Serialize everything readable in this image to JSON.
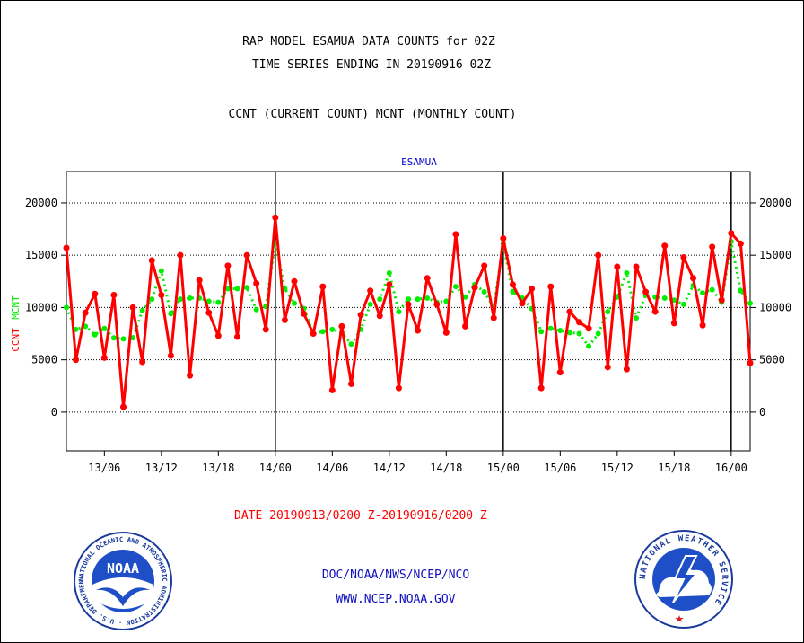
{
  "header": {
    "line1": "RAP MODEL ESAMUA DATA COUNTS for 02Z",
    "line2": "TIME SERIES ENDING IN 20190916 02Z",
    "line3": "CCNT (CURRENT COUNT) MCNT (MONTHLY COUNT)"
  },
  "footer": {
    "date_range": "DATE 20190913/0200 Z-20190916/0200 Z",
    "org": "DOC/NOAA/NWS/NCEP/NCO",
    "url": "WWW.NCEP.NOAA.GOV"
  },
  "logos": {
    "left": "noaa-logo",
    "left_text": "NOAA",
    "left_ring_text": "NATIONAL OCEANIC AND ATMOSPHERIC ADMINISTRATION · U.S. DEPARTMENT OF COMMERCE",
    "right": "nws-logo",
    "right_ring_text": "NATIONAL WEATHER SERVICE"
  },
  "colors": {
    "ccnt": "#ff0000",
    "mcnt": "#00ee00",
    "title": "#0000cc",
    "axis": "#000000"
  },
  "chart_data": {
    "type": "line",
    "title": "ESAMUA",
    "ylabel_left_series1": "CCNT",
    "ylabel_left_series2": "MCNT",
    "ylim": [
      -3700,
      23000
    ],
    "yticks": [
      0,
      5000,
      10000,
      15000,
      20000
    ],
    "grid": true,
    "x_tick_labels": [
      "13/06",
      "13/12",
      "13/18",
      "14/00",
      "14/06",
      "14/12",
      "14/18",
      "15/00",
      "15/06",
      "15/12",
      "15/18",
      "16/00"
    ],
    "x_tick_hours": [
      4,
      10,
      16,
      22,
      28,
      34,
      40,
      46,
      52,
      58,
      64,
      70
    ],
    "day_boundary_hours": [
      22,
      46,
      70
    ],
    "x_range_hours": [
      0,
      72
    ],
    "series": [
      {
        "name": "CCNT",
        "color": "#ff0000",
        "x_hours": [
          0,
          1,
          2,
          3,
          4,
          5,
          6,
          7,
          8,
          9,
          10,
          11,
          12,
          13,
          14,
          15,
          16,
          17,
          18,
          19,
          20,
          21,
          22,
          23,
          24,
          25,
          26,
          27,
          28,
          29,
          30,
          31,
          32,
          33,
          34,
          35,
          36,
          37,
          38,
          39,
          40,
          41,
          42,
          43,
          44,
          45,
          46,
          47,
          48,
          49,
          50,
          51,
          52,
          53,
          54,
          55,
          56,
          57,
          58,
          59,
          60,
          61,
          62,
          63,
          64,
          65,
          66,
          67,
          68,
          69,
          70,
          71,
          72
        ],
        "values": [
          15700,
          5000,
          9500,
          11300,
          5200,
          11200,
          500,
          10000,
          4800,
          14500,
          11200,
          5400,
          15000,
          3500,
          12600,
          9500,
          7300,
          14000,
          7200,
          15000,
          12300,
          7900,
          18600,
          8800,
          12500,
          9400,
          7500,
          12000,
          2100,
          8200,
          2700,
          9300,
          11600,
          9200,
          12200,
          2300,
          10300,
          7800,
          12800,
          10300,
          7600,
          17000,
          8200,
          11900,
          14000,
          9000,
          16600,
          12200,
          10400,
          11800,
          2300,
          12000,
          3800,
          9600,
          8600,
          8000,
          15000,
          4300,
          13900,
          4100,
          13900,
          11500,
          9600,
          15900,
          8500,
          14800,
          12800,
          8300,
          15800,
          10700,
          17100,
          16100,
          4700
        ]
      },
      {
        "name": "MCNT",
        "color": "#00ee00",
        "x_hours": [
          0,
          1,
          2,
          3,
          4,
          5,
          6,
          7,
          8,
          9,
          10,
          11,
          12,
          13,
          14,
          15,
          16,
          17,
          18,
          19,
          20,
          21,
          22,
          23,
          24,
          25,
          26,
          27,
          28,
          29,
          30,
          31,
          32,
          33,
          34,
          35,
          36,
          37,
          38,
          39,
          40,
          41,
          42,
          43,
          44,
          45,
          46,
          47,
          48,
          49,
          50,
          51,
          52,
          53,
          54,
          55,
          56,
          57,
          58,
          59,
          60,
          61,
          62,
          63,
          64,
          65,
          66,
          67,
          68,
          69,
          70,
          71,
          72
        ],
        "values": [
          10000,
          7900,
          8200,
          7400,
          8000,
          7100,
          7000,
          7100,
          9700,
          10800,
          13500,
          9400,
          10800,
          10900,
          10900,
          10600,
          10500,
          11800,
          11800,
          11900,
          9800,
          10100,
          16200,
          11800,
          10400,
          9900,
          7500,
          7700,
          7900,
          7600,
          6500,
          7900,
          10300,
          10800,
          13300,
          9600,
          10800,
          10800,
          10900,
          10500,
          10600,
          12000,
          11000,
          12200,
          11500,
          10000,
          16100,
          11500,
          10900,
          9900,
          7700,
          8000,
          7800,
          7600,
          7500,
          6300,
          7500,
          9600,
          11000,
          13300,
          9000,
          11200,
          11000,
          10900,
          10700,
          10300,
          12100,
          11400,
          11700,
          10500,
          16300,
          11600,
          10400
        ]
      }
    ]
  }
}
